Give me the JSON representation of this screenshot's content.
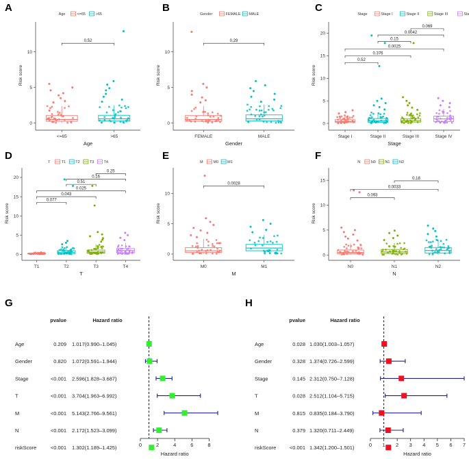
{
  "colors": {
    "c1": "#F8766D",
    "c2": "#00BFC4",
    "c3": "#7CAE00",
    "c4": "#C77CFF",
    "forestG": "#33EE33",
    "forestH": "#EE1122",
    "ci": "#1F1F8F"
  },
  "chart_data": [
    {
      "type": "boxplot",
      "letter": "A",
      "legend_title": "Age",
      "legend": [
        "<=65",
        ">65"
      ],
      "categories": [
        "<=65",
        ">65"
      ],
      "xlabel": "Age",
      "ylabel": "Risk score",
      "ylim": [
        -0.8,
        14.2
      ],
      "yticks": [
        "0",
        "5",
        "10"
      ],
      "ytick_values": [
        0,
        5,
        10
      ],
      "boxes": [
        [
          0.05,
          0.25,
          0.5,
          1.05,
          2.4
        ],
        [
          0.05,
          0.3,
          0.6,
          1.1,
          2.5
        ]
      ],
      "outliers": [
        [
          5.5,
          5.0,
          4.6,
          4.2,
          3.9,
          3.5,
          3.1,
          2.9
        ],
        [
          12.9,
          5.9,
          5.4,
          4.9,
          4.6,
          4.1,
          3.7,
          3.3,
          3.0
        ]
      ],
      "comparisons": [
        {
          "a": 0,
          "b": 1,
          "y": 11.2,
          "p": "0.52"
        }
      ]
    },
    {
      "type": "boxplot",
      "letter": "B",
      "legend_title": "Gender",
      "legend": [
        "FEMALE",
        "MALE"
      ],
      "categories": [
        "FEMALE",
        "MALE"
      ],
      "xlabel": "Gender",
      "ylabel": "Risk score",
      "ylim": [
        -0.8,
        14.2
      ],
      "yticks": [
        "0",
        "5",
        "10"
      ],
      "ytick_values": [
        0,
        5,
        10
      ],
      "boxes": [
        [
          0.05,
          0.25,
          0.5,
          1.05,
          2.4
        ],
        [
          0.05,
          0.3,
          0.6,
          1.15,
          2.6
        ]
      ],
      "outliers": [
        [
          12.8,
          5.5,
          5.0,
          4.5,
          4.0,
          3.6,
          3.2,
          2.9
        ],
        [
          5.9,
          5.3,
          4.9,
          4.5,
          4.1,
          3.7,
          3.3,
          3.0
        ]
      ],
      "comparisons": [
        {
          "a": 0,
          "b": 1,
          "y": 11.2,
          "p": "0.29"
        }
      ]
    },
    {
      "type": "boxplot",
      "letter": "C",
      "legend_title": "Stage",
      "legend": [
        "Stage I",
        "Stage II",
        "Stage III",
        "Stage IV"
      ],
      "categories": [
        "Stage I",
        "Stage II",
        "Stage III",
        "Stage IV"
      ],
      "xlabel": "Stage",
      "ylabel": "Risk score",
      "ylim": [
        -1.2,
        22.5
      ],
      "yticks": [
        "0",
        "5",
        "10",
        "15",
        "20"
      ],
      "ytick_values": [
        0,
        5,
        10,
        15,
        20
      ],
      "boxes": [
        [
          0.05,
          0.2,
          0.4,
          0.8,
          1.8
        ],
        [
          0.05,
          0.25,
          0.55,
          1.05,
          2.4
        ],
        [
          0.05,
          0.3,
          0.6,
          1.05,
          2.4
        ],
        [
          0.1,
          0.4,
          1.0,
          1.6,
          3.2
        ]
      ],
      "outliers": [
        [
          2.9,
          2.5,
          2.2
        ],
        [
          19.5,
          17.8,
          12.7,
          5.5,
          5.0,
          4.5,
          4.0,
          3.6,
          3.1
        ],
        [
          17.8,
          5.8,
          5.0,
          4.5,
          4.0,
          3.5,
          3.0
        ],
        [
          5.6,
          5.0,
          4.5,
          4.0,
          3.6
        ]
      ],
      "comparisons": [
        {
          "a": 0,
          "b": 1,
          "y": 13.5,
          "p": "0.52"
        },
        {
          "a": 0,
          "b": 2,
          "y": 15.0,
          "p": "0.376"
        },
        {
          "a": 0,
          "b": 3,
          "y": 16.5,
          "p": "0.0025"
        },
        {
          "a": 1,
          "b": 2,
          "y": 18.2,
          "p": "0.15"
        },
        {
          "a": 1,
          "b": 3,
          "y": 19.6,
          "p": "0.0042"
        },
        {
          "a": 2,
          "b": 3,
          "y": 21.0,
          "p": "0.069"
        }
      ]
    },
    {
      "type": "boxplot",
      "letter": "D",
      "legend_title": "T",
      "legend": [
        "T1",
        "T2",
        "T3",
        "T4"
      ],
      "categories": [
        "T1",
        "T2",
        "T3",
        "T4"
      ],
      "xlabel": "T",
      "ylabel": "Risk score",
      "ylim": [
        -1.2,
        22.5
      ],
      "yticks": [
        "0",
        "5",
        "10",
        "15",
        "20"
      ],
      "ytick_values": [
        0,
        5,
        10,
        15,
        20
      ],
      "boxes": [
        [
          0.05,
          0.1,
          0.2,
          0.3,
          0.45
        ],
        [
          0.05,
          0.2,
          0.45,
          0.95,
          2.0
        ],
        [
          0.05,
          0.3,
          0.6,
          1.1,
          2.6
        ],
        [
          0.1,
          0.4,
          1.0,
          1.5,
          3.0
        ]
      ],
      "outliers": [
        [
          0.5,
          0.4
        ],
        [
          19.5,
          17.8,
          3.5,
          3.0,
          2.6
        ],
        [
          17.8,
          12.7,
          5.8,
          5.2,
          4.7,
          4.2,
          3.8,
          3.3
        ],
        [
          5.6,
          5.0,
          4.3,
          3.7
        ]
      ],
      "comparisons": [
        {
          "a": 0,
          "b": 1,
          "y": 13.5,
          "p": "0.077"
        },
        {
          "a": 0,
          "b": 2,
          "y": 15.0,
          "p": "0.043"
        },
        {
          "a": 0,
          "b": 3,
          "y": 16.5,
          "p": "0.025"
        },
        {
          "a": 1,
          "b": 2,
          "y": 18.2,
          "p": "0.51"
        },
        {
          "a": 1,
          "b": 3,
          "y": 19.6,
          "p": "0.16"
        },
        {
          "a": 2,
          "b": 3,
          "y": 21.0,
          "p": "0.25"
        }
      ]
    },
    {
      "type": "boxplot",
      "letter": "E",
      "legend_title": "M",
      "legend": [
        "M0",
        "M1"
      ],
      "categories": [
        "M0",
        "M1"
      ],
      "xlabel": "M",
      "ylabel": "Risk score",
      "ylim": [
        -0.8,
        14.2
      ],
      "yticks": [
        "0",
        "5",
        "10"
      ],
      "ytick_values": [
        0,
        5,
        10
      ],
      "boxes": [
        [
          0.05,
          0.25,
          0.55,
          1.05,
          2.5
        ],
        [
          0.1,
          0.55,
          1.0,
          1.6,
          3.1
        ]
      ],
      "outliers": [
        [
          12.9,
          5.9,
          5.3,
          4.8,
          4.3,
          3.9,
          3.5,
          3.1,
          2.8
        ],
        [
          5.6,
          5.0,
          4.5,
          4.0,
          3.6
        ]
      ],
      "comparisons": [
        {
          "a": 0,
          "b": 1,
          "y": 11.2,
          "p": "0.0028"
        }
      ]
    },
    {
      "type": "boxplot",
      "letter": "F",
      "legend_title": "N",
      "legend": [
        "N0",
        "N1",
        "N2"
      ],
      "categories": [
        "N0",
        "N1",
        "N2"
      ],
      "xlabel": "N",
      "ylabel": "Risk score",
      "ylim": [
        -0.8,
        17.5
      ],
      "yticks": [
        "0",
        "5",
        "10",
        "15"
      ],
      "ytick_values": [
        0,
        5,
        10,
        15
      ],
      "boxes": [
        [
          0.05,
          0.25,
          0.5,
          1.0,
          2.3
        ],
        [
          0.05,
          0.3,
          0.6,
          1.1,
          2.4
        ],
        [
          0.1,
          0.4,
          0.9,
          1.5,
          3.1
        ]
      ],
      "outliers": [
        [
          13.0,
          12.6,
          5.5,
          5.0,
          4.6,
          4.1,
          3.7,
          3.3,
          2.9
        ],
        [
          4.9,
          4.4,
          3.9,
          3.4,
          3.0
        ],
        [
          5.9,
          5.3,
          4.8,
          4.2,
          3.7
        ]
      ],
      "comparisons": [
        {
          "a": 0,
          "b": 1,
          "y": 11.5,
          "p": "0.093"
        },
        {
          "a": 0,
          "b": 2,
          "y": 13.2,
          "p": "0.0033"
        },
        {
          "a": 1,
          "b": 2,
          "y": 14.9,
          "p": "0.18"
        }
      ]
    },
    {
      "type": "forest",
      "letter": "G",
      "header_p": "pvalue",
      "header_hr": "Hazard ratio",
      "xlabel": "Hazard ratio",
      "xlim": [
        0,
        9
      ],
      "xticks": [
        "0",
        "2",
        "4",
        "6",
        "8"
      ],
      "xtick_values": [
        0,
        2,
        4,
        6,
        8
      ],
      "ref": 1,
      "rows": [
        {
          "label": "Age",
          "pvalue": "0.209",
          "hr_text": "1.017(0.990–1.045)",
          "hr": 1.017,
          "lo": 0.99,
          "hi": 1.045
        },
        {
          "label": "Gender",
          "pvalue": "0.820",
          "hr_text": "1.072(0.591–1.944)",
          "hr": 1.072,
          "lo": 0.591,
          "hi": 1.944
        },
        {
          "label": "Stage",
          "pvalue": "<0.001",
          "hr_text": "2.596(1.828–3.687)",
          "hr": 2.596,
          "lo": 1.828,
          "hi": 3.687
        },
        {
          "label": "T",
          "pvalue": "<0.001",
          "hr_text": "3.704(1.963–6.992)",
          "hr": 3.704,
          "lo": 1.963,
          "hi": 6.992
        },
        {
          "label": "M",
          "pvalue": "<0.001",
          "hr_text": "5.143(2.766–9.561)",
          "hr": 5.143,
          "lo": 2.766,
          "hi": 9.561
        },
        {
          "label": "N",
          "pvalue": "<0.001",
          "hr_text": "2.172(1.523–3.099)",
          "hr": 2.172,
          "lo": 1.523,
          "hi": 3.099
        },
        {
          "label": "riskScore",
          "pvalue": "<0.001",
          "hr_text": "1.302(1.189–1.425)",
          "hr": 1.302,
          "lo": 1.189,
          "hi": 1.425
        }
      ]
    },
    {
      "type": "forest",
      "letter": "H",
      "header_p": "pvalue",
      "header_hr": "Hazard ratio",
      "xlabel": "Hazard ratio",
      "xlim": [
        0,
        7
      ],
      "xticks": [
        "0",
        "1",
        "2",
        "3",
        "4",
        "5",
        "6",
        "7"
      ],
      "xtick_values": [
        0,
        1,
        2,
        3,
        4,
        5,
        6,
        7
      ],
      "ref": 1,
      "rows": [
        {
          "label": "Age",
          "pvalue": "0.028",
          "hr_text": "1.030(1.003–1.057)",
          "hr": 1.03,
          "lo": 1.003,
          "hi": 1.057
        },
        {
          "label": "Gender",
          "pvalue": "0.328",
          "hr_text": "1.374(0.726–2.599)",
          "hr": 1.374,
          "lo": 0.726,
          "hi": 2.599
        },
        {
          "label": "Stage",
          "pvalue": "0.145",
          "hr_text": "2.312(0.750–7.128)",
          "hr": 2.312,
          "lo": 0.75,
          "hi": 7.128
        },
        {
          "label": "T",
          "pvalue": "0.028",
          "hr_text": "2.512(1.104–5.715)",
          "hr": 2.512,
          "lo": 1.104,
          "hi": 5.715
        },
        {
          "label": "M",
          "pvalue": "0.815",
          "hr_text": "0.835(0.184–3.790)",
          "hr": 0.835,
          "lo": 0.184,
          "hi": 3.79
        },
        {
          "label": "N",
          "pvalue": "0.379",
          "hr_text": "1.320(0.711–2.449)",
          "hr": 1.32,
          "lo": 0.711,
          "hi": 2.449
        },
        {
          "label": "riskScore",
          "pvalue": "<0.001",
          "hr_text": "1.342(1.200–1.501)",
          "hr": 1.342,
          "lo": 1.2,
          "hi": 1.501
        }
      ]
    }
  ]
}
